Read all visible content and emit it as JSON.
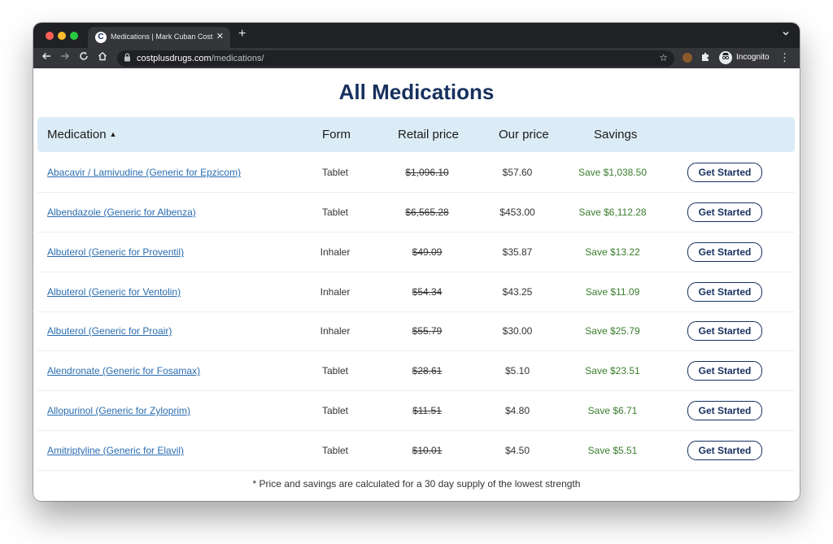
{
  "browser": {
    "tab_title": "Medications | Mark Cuban Cost Plus Drugs",
    "favicon_letter": "C",
    "close_glyph": "✕",
    "newtab_glyph": "+",
    "url_host": "costplusdrugs.com",
    "url_path": "/medications/",
    "profile_label": "Incognito"
  },
  "page": {
    "title": "All Medications",
    "headers": {
      "medication": "Medication",
      "form": "Form",
      "retail": "Retail price",
      "our": "Our price",
      "savings": "Savings"
    },
    "rows": [
      {
        "name": "Abacavir / Lamivudine (Generic for Epzicom)",
        "form": "Tablet",
        "retail": "$1,096.10",
        "our": "$57.60",
        "savings": "Save $1,038.50",
        "button": "Get Started"
      },
      {
        "name": "Albendazole (Generic for Albenza)",
        "form": "Tablet",
        "retail": "$6,565.28",
        "our": "$453.00",
        "savings": "Save $6,112.28",
        "button": "Get Started"
      },
      {
        "name": "Albuterol (Generic for Proventil)",
        "form": "Inhaler",
        "retail": "$49.09",
        "our": "$35.87",
        "savings": "Save $13.22",
        "button": "Get Started"
      },
      {
        "name": "Albuterol (Generic for Ventolin)",
        "form": "Inhaler",
        "retail": "$54.34",
        "our": "$43.25",
        "savings": "Save $11.09",
        "button": "Get Started"
      },
      {
        "name": "Albuterol (Generic for Proair)",
        "form": "Inhaler",
        "retail": "$55.79",
        "our": "$30.00",
        "savings": "Save $25.79",
        "button": "Get Started"
      },
      {
        "name": "Alendronate (Generic for Fosamax)",
        "form": "Tablet",
        "retail": "$28.61",
        "our": "$5.10",
        "savings": "Save $23.51",
        "button": "Get Started"
      },
      {
        "name": "Allopurinol (Generic for Zyloprim)",
        "form": "Tablet",
        "retail": "$11.51",
        "our": "$4.80",
        "savings": "Save $6.71",
        "button": "Get Started"
      },
      {
        "name": "Amitriptyline (Generic for Elavil)",
        "form": "Tablet",
        "retail": "$10.01",
        "our": "$4.50",
        "savings": "Save $5.51",
        "button": "Get Started"
      }
    ],
    "footnote": "* Price and savings are calculated for a 30 day supply of the lowest strength"
  },
  "colors": {
    "title": "#17305e",
    "header_bg": "#dcecf6",
    "link": "#2a6db0",
    "savings": "#3a7d2c"
  }
}
